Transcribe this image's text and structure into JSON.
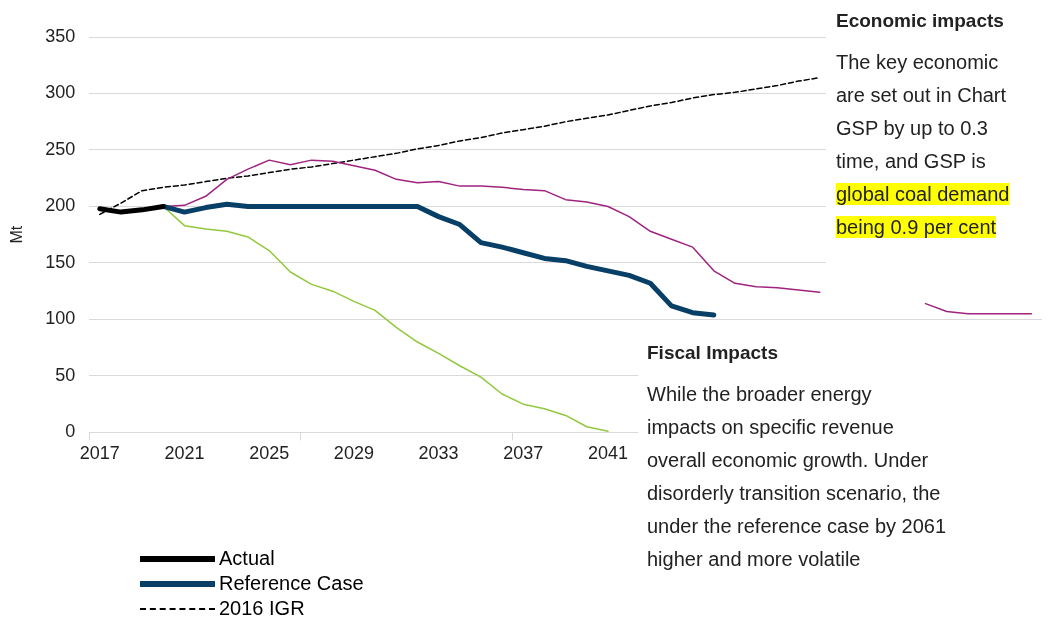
{
  "chart_data": {
    "type": "line",
    "ylabel": "Mt",
    "categories": [
      "2017",
      null,
      null,
      null,
      "2021",
      null,
      null,
      null,
      "2025",
      null,
      null,
      null,
      "2029",
      null,
      null,
      null,
      "2033",
      null,
      null,
      null,
      "2037",
      null,
      null,
      null,
      "2041",
      null,
      null,
      null,
      null,
      null,
      null,
      null,
      null,
      null,
      null,
      null,
      null,
      null,
      null,
      null,
      null,
      null,
      null,
      null,
      null
    ],
    "ylim": [
      0,
      350
    ],
    "yticks": [
      0,
      50,
      100,
      150,
      200,
      250,
      300,
      350
    ],
    "grid": "y",
    "legend": "bottom",
    "marker": "none",
    "series": [
      {
        "name": "Actual",
        "color": "#000000",
        "values": [
          198,
          195,
          197,
          200,
          null,
          null,
          null,
          null,
          null,
          null,
          null,
          null,
          null,
          null,
          null,
          null,
          null,
          null,
          null,
          null,
          null,
          null,
          null,
          null,
          null,
          null,
          null,
          null,
          null,
          null,
          null,
          null,
          null,
          null,
          null,
          null,
          null,
          null,
          null,
          null,
          null,
          null,
          null,
          null,
          null
        ]
      },
      {
        "name": "Reference Case",
        "color": "#073f66",
        "values": [
          null,
          null,
          null,
          200,
          195,
          199,
          202,
          200,
          200,
          200,
          200,
          200,
          200,
          200,
          200,
          200,
          191,
          184,
          168,
          164,
          159,
          154,
          152,
          147,
          143,
          139,
          132,
          112,
          106,
          104,
          null,
          null,
          null,
          null,
          null,
          null,
          null,
          null,
          null,
          null,
          null,
          null,
          null,
          null,
          null
        ]
      },
      {
        "color": "#92c83e",
        "values": [
          null,
          null,
          null,
          200,
          183,
          180,
          178,
          173,
          161,
          142,
          131,
          125,
          116,
          108,
          93,
          80,
          70,
          59,
          49,
          34,
          25,
          21,
          15,
          5,
          1,
          null,
          null,
          null,
          null,
          null,
          null,
          null,
          null,
          null,
          null,
          null,
          null,
          null,
          null,
          null,
          null,
          null,
          null,
          null,
          null
        ]
      },
      {
        "color": "#a0237f",
        "values": [
          null,
          null,
          null,
          200,
          201,
          209,
          224,
          233,
          241,
          237,
          241,
          240,
          236,
          232,
          224,
          221,
          222,
          218,
          218,
          217,
          215,
          214,
          206,
          204,
          200,
          191,
          178,
          171,
          164,
          143,
          132,
          129,
          128,
          126,
          124,
          null,
          null,
          null,
          null,
          114,
          107,
          105,
          105,
          105,
          105
        ]
      },
      {
        "name": "2016 IGR",
        "color": "#000000",
        "line_style": "dashed",
        "values": [
          193,
          203,
          214,
          217,
          219,
          222,
          225,
          227,
          230,
          233,
          235,
          238,
          241,
          244,
          247,
          251,
          254,
          258,
          261,
          265,
          268,
          271,
          275,
          278,
          281,
          285,
          289,
          292,
          296,
          299,
          301,
          304,
          307,
          311,
          314,
          null,
          null,
          null,
          null,
          null,
          null,
          null,
          null,
          null,
          null
        ]
      }
    ],
    "annotations": [
      "Economic impacts",
      "The key economic\nare set out in Chart\nGSP by up to 0.3\ntime, and GSP is",
      "global coal demand\nbeing 0.9 per cent",
      "Fiscal Impacts",
      "While the broader energy\nimpacts on specific revenue\noverall economic growth. Under\ndisorderly transition scenario, the\nunder the reference case by 2061\nhigher and more volatile"
    ]
  }
}
